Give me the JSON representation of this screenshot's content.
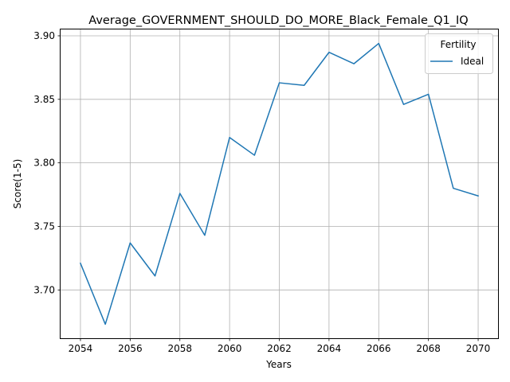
{
  "chart_data": {
    "type": "line",
    "title": "Average_GOVERNMENT_SHOULD_DO_MORE_Black_Female_Q1_IQ",
    "xlabel": "Years",
    "ylabel": "Score(1-5)",
    "x": [
      2054,
      2055,
      2056,
      2057,
      2058,
      2059,
      2060,
      2061,
      2062,
      2063,
      2064,
      2065,
      2066,
      2067,
      2068,
      2069,
      2070
    ],
    "series": [
      {
        "name": "Ideal",
        "color": "#1f77b4",
        "values": [
          3.721,
          3.673,
          3.737,
          3.711,
          3.776,
          3.743,
          3.82,
          3.806,
          3.863,
          3.861,
          3.887,
          3.878,
          3.894,
          3.846,
          3.854,
          3.78,
          3.774
        ]
      }
    ],
    "xlim": [
      2053.2,
      2070.8
    ],
    "ylim": [
      3.662,
      3.905
    ],
    "xticks": [
      2054,
      2056,
      2058,
      2060,
      2062,
      2064,
      2066,
      2068,
      2070
    ],
    "yticks": [
      3.7,
      3.75,
      3.8,
      3.85,
      3.9
    ],
    "ytick_labels": [
      "3.70",
      "3.75",
      "3.80",
      "3.85",
      "3.90"
    ],
    "grid": true,
    "legend": {
      "title": "Fertility",
      "placement": "top-right"
    }
  }
}
